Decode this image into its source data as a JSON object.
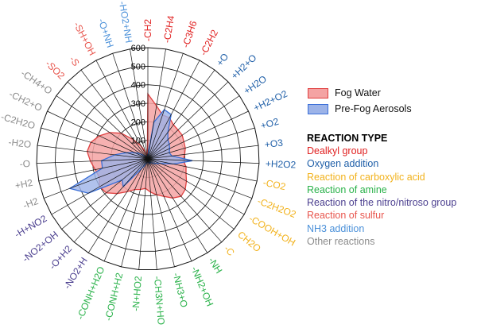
{
  "chart_data": {
    "type": "radar",
    "radial_ticks": [
      "0",
      "100",
      "200",
      "300",
      "400",
      "500",
      "600"
    ],
    "rlim": [
      0,
      600
    ],
    "categories": [
      {
        "label": "-CH2",
        "group": 0
      },
      {
        "label": "-C2H4",
        "group": 0
      },
      {
        "label": "-C3H6",
        "group": 0
      },
      {
        "label": "-C2H2",
        "group": 0
      },
      {
        "label": "+O",
        "group": 1
      },
      {
        "label": "+H2+O",
        "group": 1
      },
      {
        "label": "+H2O",
        "group": 1
      },
      {
        "label": "+H2+O2",
        "group": 1
      },
      {
        "label": "+O2",
        "group": 1
      },
      {
        "label": "+O3",
        "group": 1
      },
      {
        "label": "+H2O2",
        "group": 1
      },
      {
        "label": "-CO2",
        "group": 2
      },
      {
        "label": "-C2H2O2",
        "group": 2
      },
      {
        "label": "-COOH+OH",
        "group": 2
      },
      {
        "label": "CH2O",
        "group": 2
      },
      {
        "label": "-C",
        "group": 2
      },
      {
        "label": "-NH",
        "group": 3
      },
      {
        "label": "-NH2+OH",
        "group": 3
      },
      {
        "label": "-NH3+O",
        "group": 3
      },
      {
        "label": "-CH3N+HO",
        "group": 3
      },
      {
        "label": "-N+HO2",
        "group": 3
      },
      {
        "label": "-CONH+H2",
        "group": 3
      },
      {
        "label": "-CONH+H2O",
        "group": 3
      },
      {
        "label": "-NO2+H",
        "group": 4
      },
      {
        "label": "-O+H2",
        "group": 4
      },
      {
        "label": "-NO2+OH",
        "group": 4
      },
      {
        "label": "-H+NO2",
        "group": 4
      },
      {
        "label": "-H2",
        "group": 7
      },
      {
        "label": "+H2",
        "group": 7
      },
      {
        "label": "-O",
        "group": 7
      },
      {
        "label": "-H2O",
        "group": 7
      },
      {
        "label": "-C2H2O",
        "group": 7
      },
      {
        "label": "-CH2+O",
        "group": 7
      },
      {
        "label": "-CH4+O",
        "group": 7
      },
      {
        "label": "-SO2",
        "group": 5
      },
      {
        "label": "-S",
        "group": 5
      },
      {
        "label": "-SH+OH",
        "group": 5
      },
      {
        "label": "-O+NH",
        "group": 6
      },
      {
        "label": "-HO2+NH",
        "group": 6
      }
    ],
    "series": [
      {
        "name": "Fog Water",
        "fill": "#f4a3a3",
        "stroke": "#e04040",
        "values": [
          350,
          290,
          250,
          250,
          230,
          225,
          225,
          215,
          210,
          200,
          190,
          210,
          220,
          240,
          260,
          270,
          250,
          220,
          200,
          180,
          160,
          170,
          180,
          210,
          250,
          290,
          300,
          280,
          290,
          310,
          330,
          320,
          290,
          250,
          200,
          130,
          80,
          40,
          20
        ]
      },
      {
        "name": "Pre-Fog Aerosols",
        "fill": "#9cb3e8",
        "stroke": "#3a6fd8",
        "values": [
          20,
          200,
          280,
          270,
          180,
          150,
          140,
          130,
          120,
          130,
          240,
          140,
          70,
          50,
          40,
          30,
          20,
          30,
          20,
          20,
          20,
          20,
          30,
          60,
          200,
          180,
          370,
          450,
          250,
          250,
          180,
          120,
          80,
          50,
          20,
          10,
          10,
          10,
          10
        ]
      }
    ],
    "legend": "right"
  },
  "reaction_type": {
    "title": "REACTION TYPE",
    "items": [
      {
        "label": "Dealkyl group",
        "color": "#e02020"
      },
      {
        "label": "Oxygen addition",
        "color": "#1f5fa8"
      },
      {
        "label": "Reaction of carboxylic acid",
        "color": "#f2b21c"
      },
      {
        "label": "Reaction of amine",
        "color": "#2ab24a"
      },
      {
        "label": "Reaction of the nitro/nitroso group",
        "color": "#4b3f8f"
      },
      {
        "label": "Reaction of sulfur",
        "color": "#e8554d"
      },
      {
        "label": "NH3 addition",
        "color": "#4a90d9"
      },
      {
        "label": "Other reactions",
        "color": "#8c8c8c"
      }
    ]
  }
}
